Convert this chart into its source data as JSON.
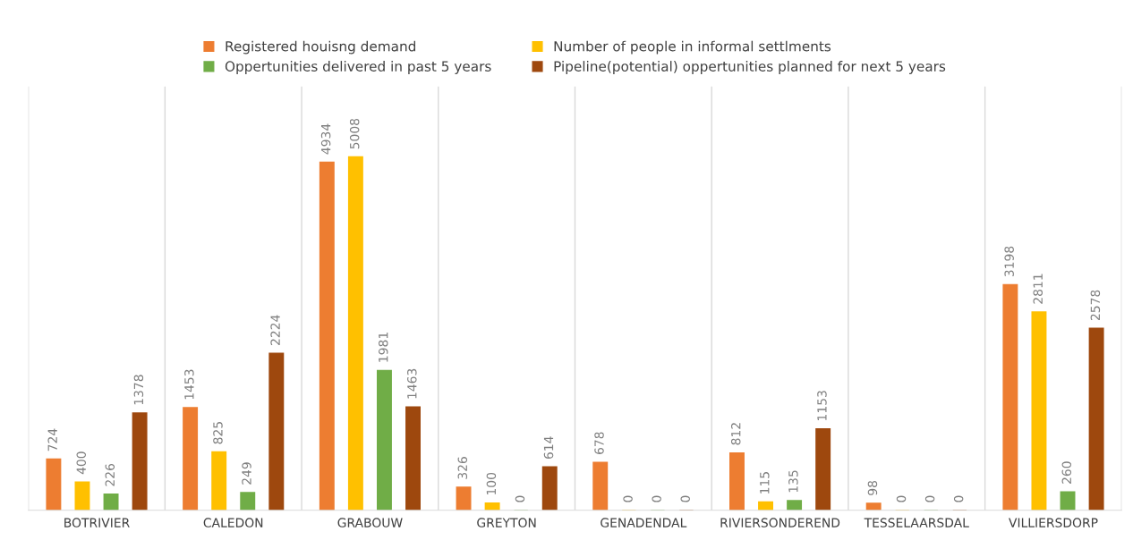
{
  "chart_data": {
    "type": "bar",
    "categories": [
      "BOTRIVIER",
      "CALEDON",
      "GRABOUW",
      "GREYTON",
      "GENADENDAL",
      "RIVIERSONDEREND",
      "TESSELAARSDAL",
      "VILLIERSDORP"
    ],
    "series": [
      {
        "name": "Registered houisng demand",
        "color": "#ed7d31",
        "values": [
          724,
          1453,
          4934,
          326,
          678,
          812,
          98,
          3198
        ]
      },
      {
        "name": "Number of people in informal settlments",
        "color": "#ffc000",
        "values": [
          400,
          825,
          5008,
          100,
          0,
          115,
          0,
          2811
        ]
      },
      {
        "name": "Oppertunities delivered in past 5 years",
        "color": "#70ad47",
        "values": [
          226,
          249,
          1981,
          0,
          0,
          135,
          0,
          260
        ]
      },
      {
        "name": "Pipeline(potential) oppertunities planned for next 5 years",
        "color": "#9e480e",
        "values": [
          1378,
          2224,
          1463,
          614,
          0,
          1153,
          0,
          2578
        ]
      }
    ],
    "data_labels": true,
    "grid": "x",
    "legend": "top"
  }
}
